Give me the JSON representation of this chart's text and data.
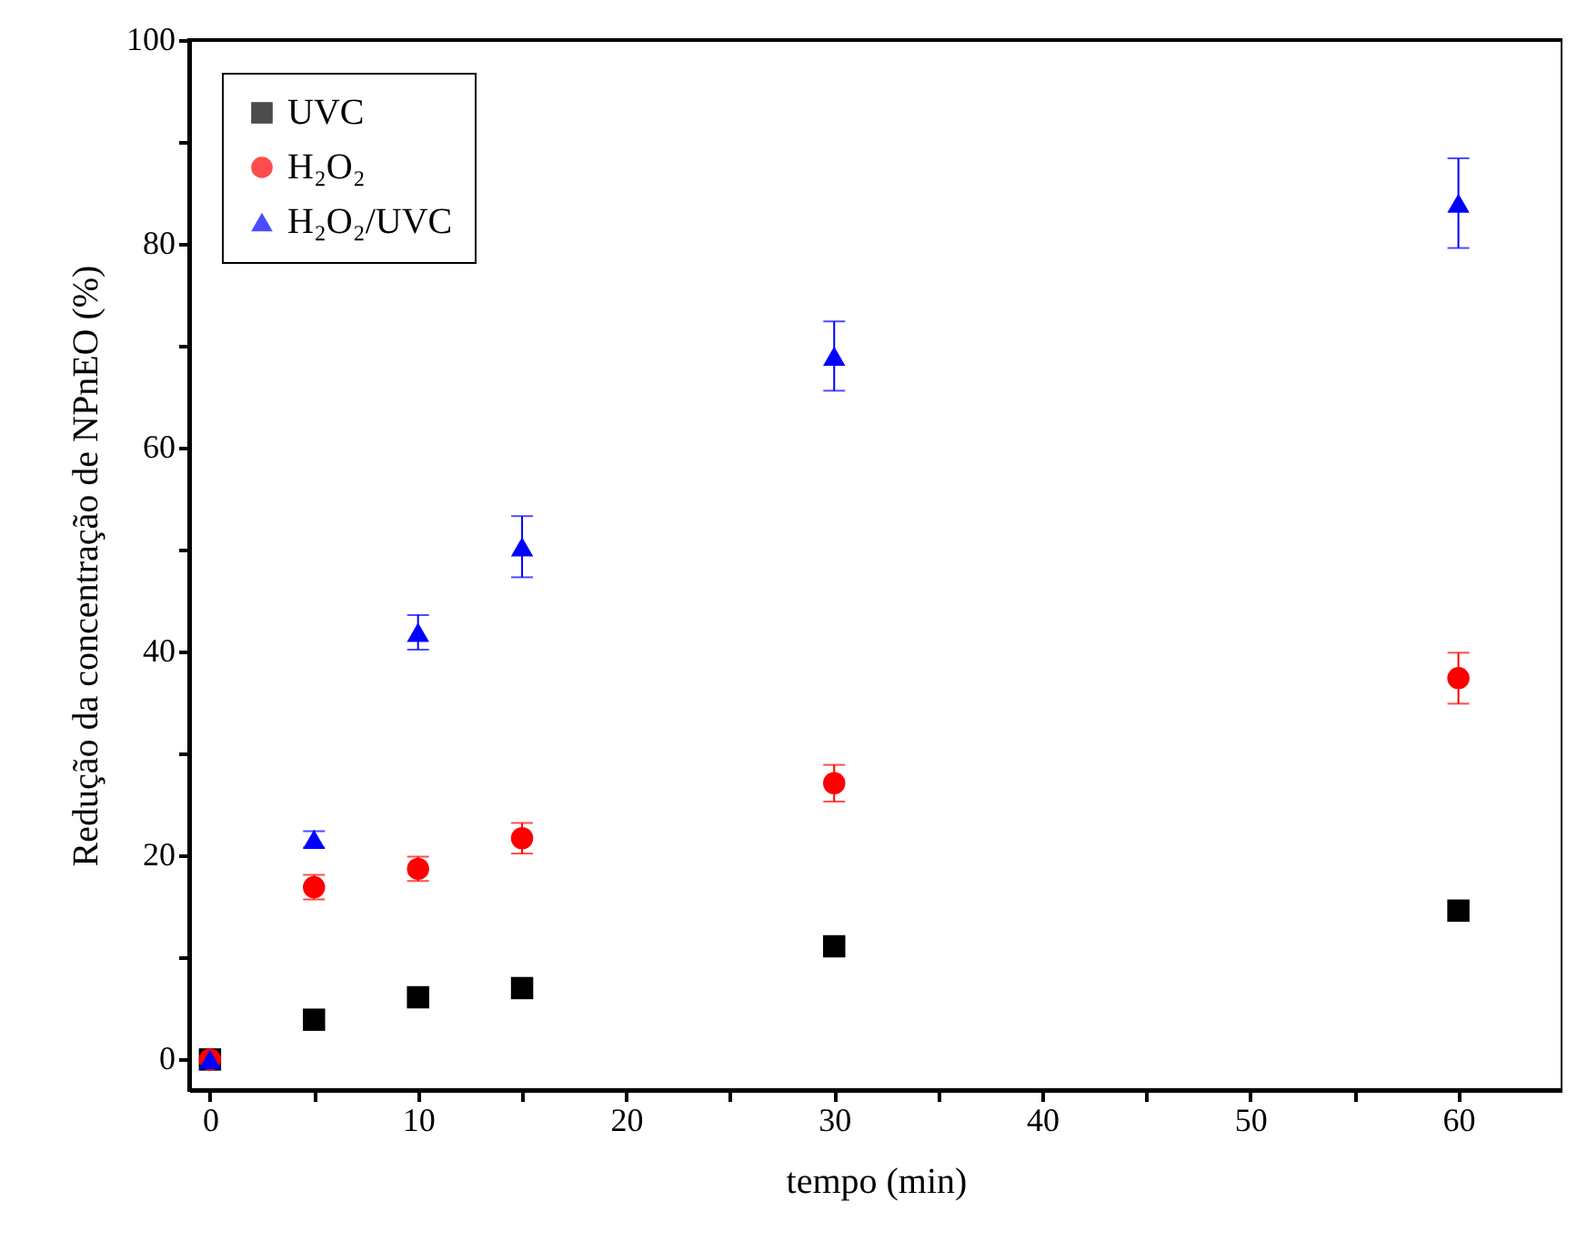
{
  "chart_data": {
    "type": "scatter",
    "xlabel": "tempo (min)",
    "ylabel": "Redução da concentração de NPnEO (%)",
    "x": [
      0,
      5,
      10,
      15,
      30,
      60
    ],
    "series": [
      {
        "name": "UVC",
        "color": "#000000",
        "marker": "square",
        "values": [
          0,
          3.9,
          6.1,
          7.0,
          11.1,
          14.6
        ],
        "errors": [
          null,
          null,
          null,
          null,
          null,
          null
        ]
      },
      {
        "name": "H₂O₂",
        "color": "#ff0000",
        "marker": "circle",
        "values": [
          0,
          16.9,
          18.7,
          21.7,
          27.1,
          37.4
        ],
        "errors": [
          null,
          1.2,
          1.2,
          1.5,
          1.8,
          2.5
        ]
      },
      {
        "name": "H₂O₂/UVC",
        "color": "#0000ff",
        "marker": "triangle",
        "values": [
          0,
          21.6,
          41.9,
          50.3,
          69.0,
          84.0
        ],
        "errors": [
          null,
          0.8,
          1.7,
          3.0,
          3.4,
          4.4
        ]
      }
    ],
    "xlim": [
      -1,
      65
    ],
    "xticks": [
      0,
      {
        "value": 5,
        "label": null
      },
      10,
      {
        "value": 15,
        "label": null
      },
      20,
      {
        "value": 25,
        "label": null
      },
      30,
      {
        "value": 35,
        "label": null
      },
      40,
      {
        "value": 45,
        "label": null
      },
      50,
      {
        "value": 55,
        "label": null
      },
      60
    ],
    "ylim": [
      -3,
      100
    ],
    "yticks": [
      0,
      {
        "value": 10,
        "label": null
      },
      20,
      {
        "value": 30,
        "label": null
      },
      40,
      {
        "value": 50,
        "label": null
      },
      60,
      {
        "value": 70,
        "label": null
      },
      80,
      {
        "value": 90,
        "label": null
      },
      100
    ],
    "legend": "top left",
    "grid": false
  }
}
